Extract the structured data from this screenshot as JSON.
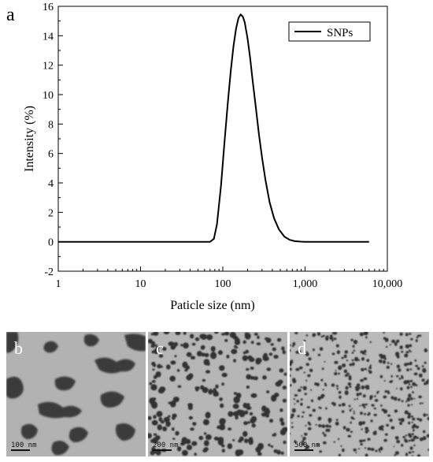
{
  "chart_data": {
    "type": "line",
    "panel_letter": "a",
    "xlabel": "Paticle size (nm)",
    "ylabel": "Intensity (%)",
    "xscale": "log",
    "xlim": [
      1,
      10000
    ],
    "ylim": [
      -2,
      16
    ],
    "x_ticks": [
      1,
      10,
      100,
      1000,
      10000
    ],
    "x_tick_labels": [
      "1",
      "10",
      "100",
      "1,000",
      "10,000"
    ],
    "y_ticks": [
      -2,
      0,
      2,
      4,
      6,
      8,
      10,
      12,
      14,
      16
    ],
    "y_tick_labels": [
      "-2",
      "0",
      "2",
      "4",
      "6",
      "8",
      "10",
      "12",
      "14",
      "16"
    ],
    "grid": false,
    "legend_position": "top-right",
    "series": [
      {
        "name": "SNPs",
        "color": "#000000",
        "x": [
          1,
          10,
          50,
          70,
          78,
          85,
          95,
          105,
          115,
          125,
          135,
          145,
          155,
          165,
          175,
          185,
          200,
          215,
          230,
          250,
          275,
          300,
          330,
          370,
          420,
          480,
          560,
          650,
          750,
          900,
          1000,
          2000,
          6000
        ],
        "y": [
          0,
          0,
          0,
          0,
          0.2,
          1.2,
          3.8,
          6.8,
          9.4,
          11.6,
          13.3,
          14.5,
          15.2,
          15.45,
          15.3,
          14.9,
          13.8,
          12.5,
          11.0,
          9.3,
          7.3,
          5.7,
          4.2,
          2.7,
          1.6,
          0.85,
          0.35,
          0.13,
          0.04,
          0.01,
          0,
          0,
          0
        ]
      }
    ]
  },
  "tem_panels": [
    {
      "letter": "b",
      "scale_label": "100 nm"
    },
    {
      "letter": "c",
      "scale_label": "200 nm"
    },
    {
      "letter": "d",
      "scale_label": "500 nm"
    }
  ]
}
